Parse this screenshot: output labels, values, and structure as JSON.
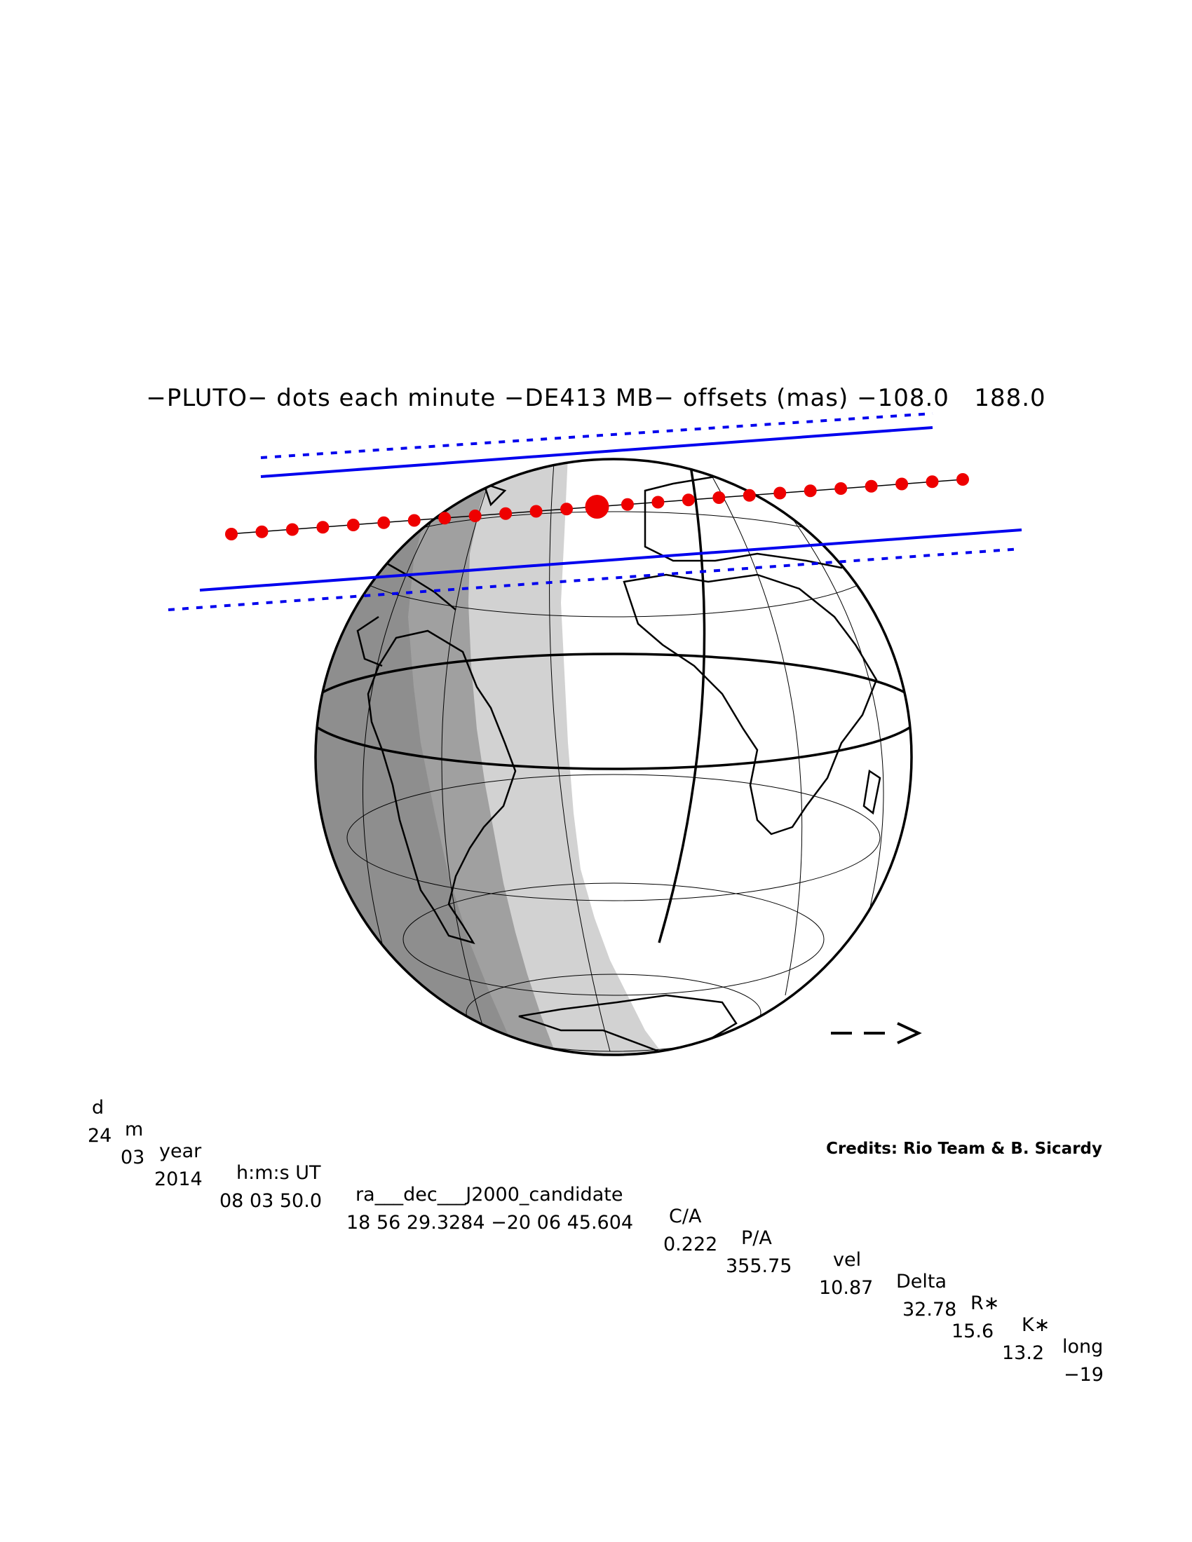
{
  "title": "−PLUTO− dots each minute −DE413 MB− offsets (mas) −108.0   188.0",
  "table": {
    "headers": [
      "d",
      "m",
      "year",
      "h:m:s UT",
      "ra___dec___J2000_candidate",
      "C/A",
      "P/A",
      "vel",
      "Delta",
      "R∗",
      "K∗",
      "long"
    ],
    "values": [
      "24",
      "03",
      "2014",
      "08 03 50.0",
      "18 56 29.3284 −20 06 45.604",
      "0.222",
      "355.75",
      "10.87",
      "32.78",
      "15.6",
      "13.2",
      "−19"
    ]
  },
  "direction_arrow": "−−>",
  "credits": "Credits: Rio Team & B. Sicardy",
  "colors": {
    "night": "#a0a0a0",
    "twilight": "#d2d2d2",
    "day": "#ffffff",
    "shadow_path": "#0000ee",
    "track_dots": "#ee0000",
    "outline": "#000000"
  }
}
